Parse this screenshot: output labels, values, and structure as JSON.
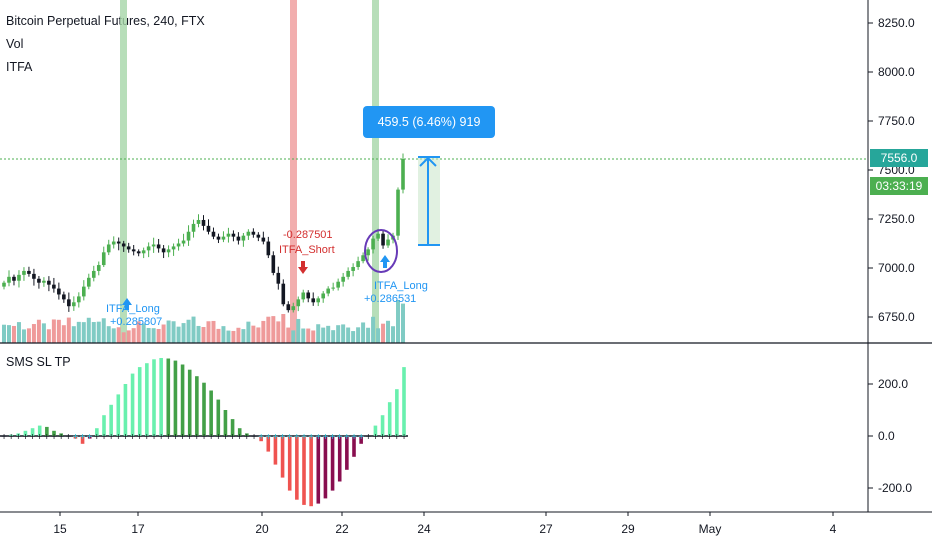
{
  "header": {
    "title": "Bitcoin Perpetual Futures, 240, FTX",
    "indicators": [
      "Vol",
      "ITFA"
    ]
  },
  "lower_pane": {
    "title": "SMS SL TP"
  },
  "price_tags": {
    "last_price": "7556.0",
    "countdown": "03:33:19",
    "colors": {
      "last_price": "#26a69a",
      "countdown": "#4caf50"
    }
  },
  "measure": {
    "label": "459.5 (6.46%) 919",
    "color": "#2196f3"
  },
  "annotations": {
    "long1": {
      "label": "ITFA_Long",
      "value": "+0.285807"
    },
    "short1": {
      "label": "ITFA_Short",
      "value": "-0.287501"
    },
    "long2": {
      "label": "ITFA_Long",
      "value": "+0.286531"
    }
  },
  "chart_data": [
    {
      "type": "candlestick",
      "title": "Bitcoin Perpetual Futures, 240, FTX",
      "y_ticks": [
        8250,
        8000,
        7750,
        7500,
        7250,
        7000,
        6750
      ],
      "ylim": [
        6700,
        8370
      ],
      "x_ticks": [
        "15",
        "17",
        "20",
        "22",
        "24",
        "27",
        "29",
        "May",
        "4"
      ],
      "last_price": 7556.0,
      "measurement": {
        "from": 7110,
        "to": 7570,
        "change": 459.5,
        "percent": 6.46,
        "bars": 919
      },
      "signal_bands": [
        {
          "type": "long",
          "color": "#a5d6a7"
        },
        {
          "type": "short",
          "color": "#ef9a9a"
        },
        {
          "type": "long",
          "color": "#a5d6a7"
        }
      ],
      "close": [
        6925,
        6955,
        6935,
        6965,
        6985,
        6970,
        6945,
        6925,
        6935,
        6915,
        6895,
        6865,
        6840,
        6805,
        6825,
        6855,
        6905,
        6950,
        6985,
        7015,
        7080,
        7120,
        7135,
        7125,
        7110,
        7095,
        7085,
        7075,
        7090,
        7110,
        7120,
        7100,
        7080,
        7095,
        7110,
        7125,
        7140,
        7185,
        7225,
        7245,
        7215,
        7185,
        7160,
        7145,
        7160,
        7175,
        7160,
        7140,
        7165,
        7185,
        7170,
        7155,
        7135,
        7065,
        6975,
        6920,
        6815,
        6785,
        6805,
        6840,
        6875,
        6845,
        6825,
        6845,
        6870,
        6895,
        6900,
        6930,
        6955,
        6985,
        7005,
        7035,
        7065,
        7095,
        7150,
        7175,
        7115,
        7145,
        7165,
        7400,
        7556
      ]
    },
    {
      "type": "bar",
      "title": "SMS SL TP",
      "y_ticks": [
        200,
        0,
        -200
      ],
      "ylim": [
        -320,
        360
      ],
      "values": [
        0,
        5,
        10,
        20,
        30,
        40,
        35,
        20,
        10,
        0,
        -10,
        -30,
        -10,
        30,
        80,
        120,
        160,
        200,
        240,
        265,
        280,
        295,
        300,
        298,
        290,
        275,
        255,
        230,
        205,
        175,
        140,
        100,
        65,
        30,
        10,
        0,
        -20,
        -60,
        -110,
        -160,
        -210,
        -245,
        -265,
        -270,
        -260,
        -240,
        -210,
        -175,
        -130,
        -80,
        -30,
        0,
        40,
        80,
        130,
        180,
        265
      ]
    }
  ]
}
